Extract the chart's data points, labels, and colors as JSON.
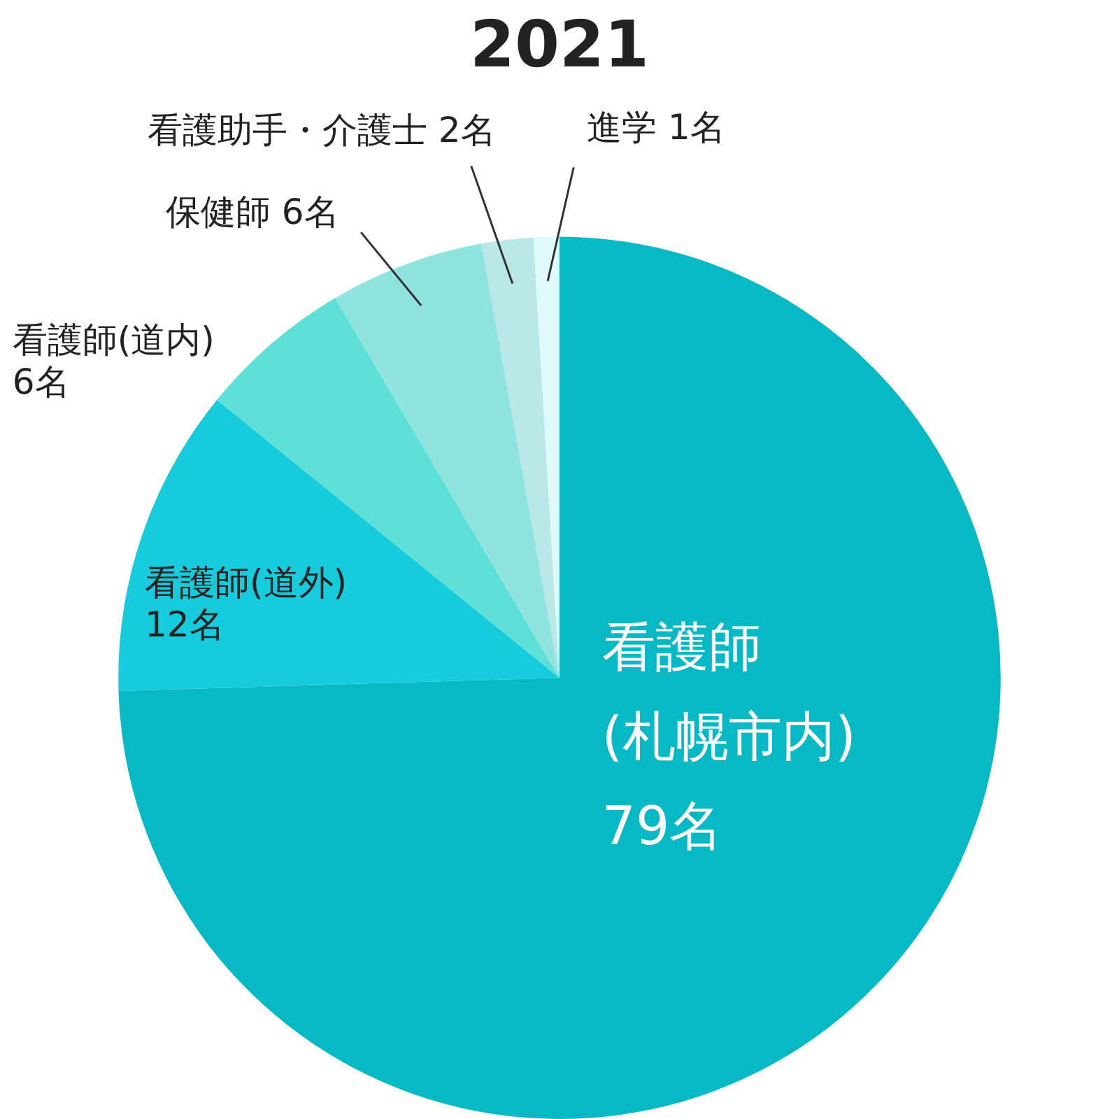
{
  "chart_data": {
    "type": "pie",
    "title": "2021",
    "categories": [
      "看護師(札幌市内)",
      "看護師(道外)",
      "看護師(道内)",
      "保健師",
      "看護助手・介護士",
      "進学"
    ],
    "values": [
      79,
      12,
      6,
      6,
      2,
      1
    ],
    "value_labels": [
      "79名",
      "12名",
      "6名",
      "6名",
      "2名",
      "1名"
    ],
    "colors": [
      "#06b9c4",
      "#16cbdb",
      "#5ee0d8",
      "#90e4e0",
      "#b9e8e6",
      "#e0fafa"
    ],
    "legend": false
  }
}
